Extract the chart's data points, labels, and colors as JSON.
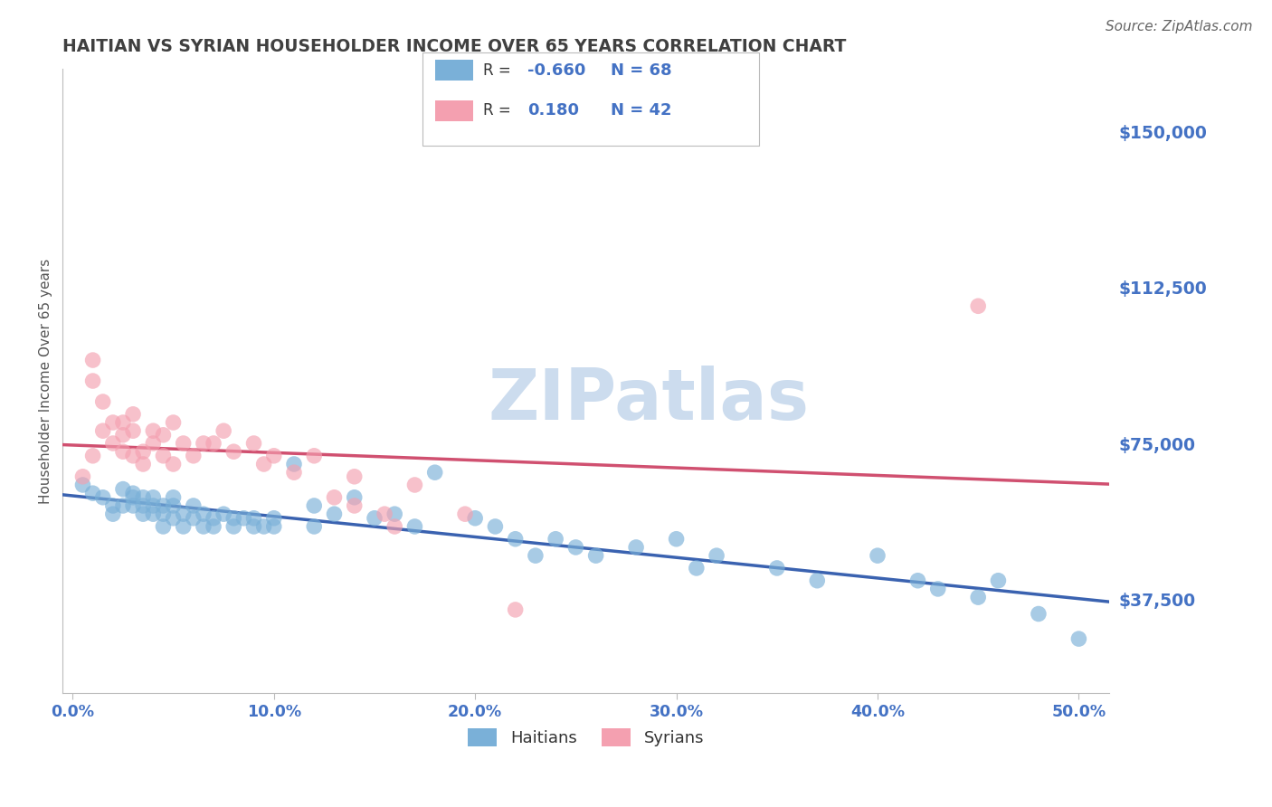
{
  "title": "HAITIAN VS SYRIAN HOUSEHOLDER INCOME OVER 65 YEARS CORRELATION CHART",
  "source": "Source: ZipAtlas.com",
  "ylabel": "Householder Income Over 65 years",
  "xlabel_ticks": [
    "0.0%",
    "10.0%",
    "20.0%",
    "30.0%",
    "40.0%",
    "50.0%"
  ],
  "xlabel_vals": [
    0.0,
    0.1,
    0.2,
    0.3,
    0.4,
    0.5
  ],
  "ytick_labels": [
    "$37,500",
    "$75,000",
    "$112,500",
    "$150,000"
  ],
  "ytick_vals": [
    37500,
    75000,
    112500,
    150000
  ],
  "ylim": [
    15000,
    165000
  ],
  "xlim": [
    -0.005,
    0.515
  ],
  "haitian_color": "#7ab0d8",
  "syrian_color": "#f4a0b0",
  "haitian_line_color": "#3a62b0",
  "syrian_line_color": "#d05070",
  "background_color": "#ffffff",
  "grid_color": "#cccccc",
  "title_color": "#404040",
  "axis_tick_color": "#4472c4",
  "watermark": "ZIPatlas",
  "watermark_color": "#ccdcee",
  "legend_R_color": "#4472c4",
  "legend_text_color": "#333333",
  "haitian_x": [
    0.005,
    0.01,
    0.015,
    0.02,
    0.02,
    0.025,
    0.025,
    0.03,
    0.03,
    0.03,
    0.035,
    0.035,
    0.035,
    0.04,
    0.04,
    0.04,
    0.045,
    0.045,
    0.045,
    0.05,
    0.05,
    0.05,
    0.055,
    0.055,
    0.06,
    0.06,
    0.065,
    0.065,
    0.07,
    0.07,
    0.075,
    0.08,
    0.08,
    0.085,
    0.09,
    0.09,
    0.095,
    0.1,
    0.1,
    0.11,
    0.12,
    0.12,
    0.13,
    0.14,
    0.15,
    0.16,
    0.17,
    0.18,
    0.2,
    0.21,
    0.22,
    0.23,
    0.24,
    0.25,
    0.26,
    0.28,
    0.3,
    0.31,
    0.32,
    0.35,
    0.37,
    0.4,
    0.42,
    0.43,
    0.45,
    0.46,
    0.48,
    0.5
  ],
  "haitian_y": [
    65000,
    63000,
    62000,
    60000,
    58000,
    64000,
    60000,
    62000,
    63000,
    60000,
    60000,
    58000,
    62000,
    58000,
    60000,
    62000,
    58000,
    55000,
    60000,
    57000,
    60000,
    62000,
    58000,
    55000,
    57000,
    60000,
    55000,
    58000,
    55000,
    57000,
    58000,
    55000,
    57000,
    57000,
    55000,
    57000,
    55000,
    57000,
    55000,
    70000,
    60000,
    55000,
    58000,
    62000,
    57000,
    58000,
    55000,
    68000,
    57000,
    55000,
    52000,
    48000,
    52000,
    50000,
    48000,
    50000,
    52000,
    45000,
    48000,
    45000,
    42000,
    48000,
    42000,
    40000,
    38000,
    42000,
    34000,
    28000
  ],
  "syrian_x": [
    0.005,
    0.01,
    0.01,
    0.01,
    0.015,
    0.015,
    0.02,
    0.02,
    0.025,
    0.025,
    0.025,
    0.03,
    0.03,
    0.03,
    0.035,
    0.035,
    0.04,
    0.04,
    0.045,
    0.045,
    0.05,
    0.05,
    0.055,
    0.06,
    0.065,
    0.07,
    0.075,
    0.08,
    0.09,
    0.095,
    0.1,
    0.11,
    0.12,
    0.13,
    0.14,
    0.14,
    0.155,
    0.16,
    0.17,
    0.195,
    0.22,
    0.45
  ],
  "syrian_y": [
    67000,
    72000,
    90000,
    95000,
    85000,
    78000,
    80000,
    75000,
    80000,
    77000,
    73000,
    82000,
    78000,
    72000,
    73000,
    70000,
    78000,
    75000,
    72000,
    77000,
    70000,
    80000,
    75000,
    72000,
    75000,
    75000,
    78000,
    73000,
    75000,
    70000,
    72000,
    68000,
    72000,
    62000,
    60000,
    67000,
    58000,
    55000,
    65000,
    58000,
    35000,
    108000
  ],
  "source_italic": true,
  "source_fontsize": 11,
  "source_color": "#666666"
}
